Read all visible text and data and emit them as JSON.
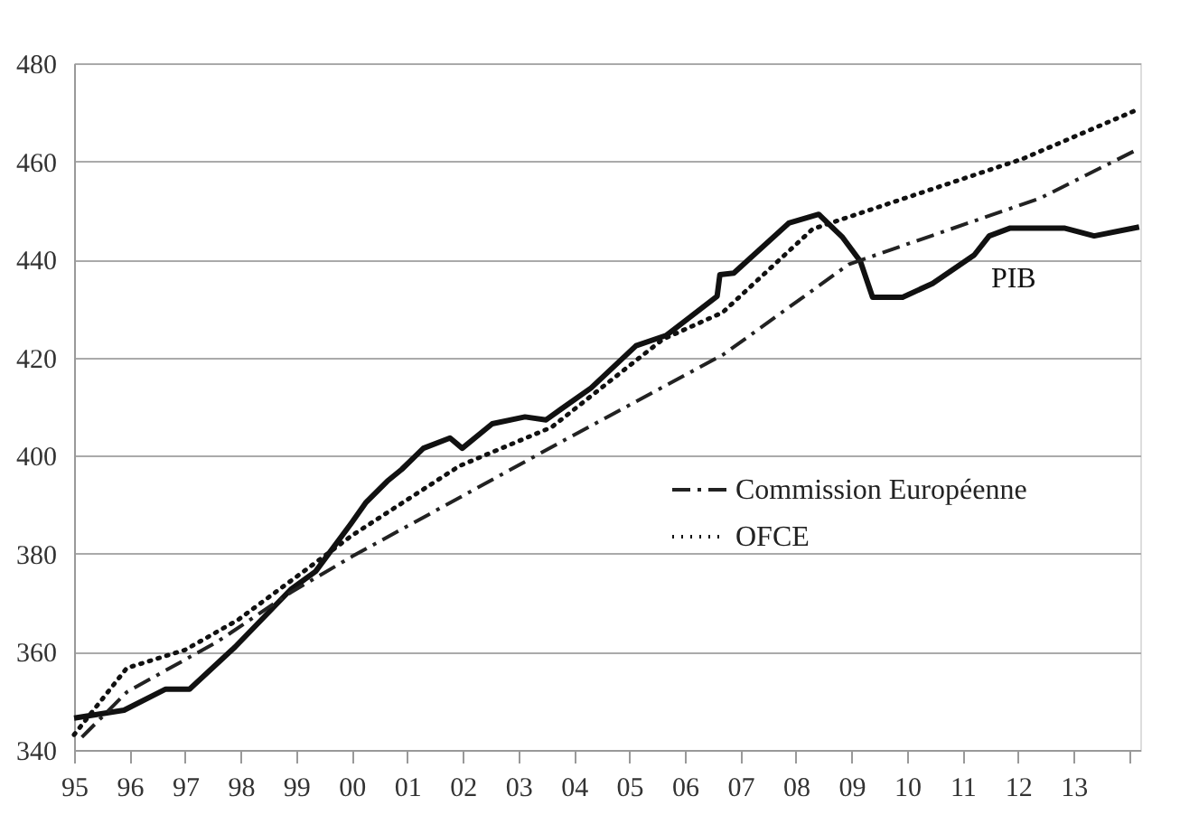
{
  "chart_data": {
    "type": "line",
    "ylim": [
      340,
      480
    ],
    "yticks": [
      340,
      360,
      380,
      400,
      420,
      440,
      460,
      480
    ],
    "xlim": [
      1995,
      2014.2
    ],
    "xticks": [
      {
        "value": 1995,
        "label": "95"
      },
      {
        "value": 1996,
        "label": "96"
      },
      {
        "value": 1997,
        "label": "97"
      },
      {
        "value": 1998,
        "label": "98"
      },
      {
        "value": 1999,
        "label": "99"
      },
      {
        "value": 2000,
        "label": "00"
      },
      {
        "value": 2001,
        "label": "01"
      },
      {
        "value": 2002,
        "label": "02"
      },
      {
        "value": 2003,
        "label": "03"
      },
      {
        "value": 2004,
        "label": "04"
      },
      {
        "value": 2005,
        "label": "05"
      },
      {
        "value": 2006,
        "label": "06"
      },
      {
        "value": 2007,
        "label": "07"
      },
      {
        "value": 2008,
        "label": "08"
      },
      {
        "value": 2009,
        "label": "09"
      },
      {
        "value": 2010,
        "label": "10"
      },
      {
        "value": 2011,
        "label": "11"
      },
      {
        "value": 2012,
        "label": "12"
      },
      {
        "value": 2013,
        "label": "13"
      },
      {
        "value": 2014,
        "label": null
      }
    ],
    "grid": "y",
    "legend": "right",
    "marker": "none",
    "series": [
      {
        "name": "PIB",
        "color": "#111111",
        "line_style": "solid",
        "x": [
          1995.0,
          1995.9,
          1996.65,
          1997.08,
          1997.9,
          1998.9,
          1999.35,
          1999.99,
          2000.26,
          2000.64,
          2000.9,
          2001.29,
          2001.77,
          2001.99,
          2002.53,
          2003.12,
          2003.5,
          2003.77,
          2004.31,
          2005.12,
          2005.66,
          2006.58,
          2006.63,
          2006.88,
          2007.87,
          2008.41,
          2008.84,
          2009.16,
          2009.38,
          2009.92,
          2010.46,
          2011.21,
          2011.48,
          2011.86,
          2012.83,
          2013.37,
          2014.18
        ],
        "values": [
          346.5,
          348.1,
          352.4,
          352.4,
          361.0,
          372.7,
          376.4,
          386.2,
          390.5,
          394.8,
          397.2,
          401.5,
          403.6,
          401.5,
          406.5,
          407.9,
          407.3,
          409.5,
          413.8,
          422.4,
          424.5,
          432.5,
          436.9,
          437.2,
          447.4,
          449.2,
          444.5,
          439.6,
          432.3,
          432.3,
          435.1,
          440.9,
          444.8,
          446.4,
          446.4,
          444.8,
          446.6
        ]
      },
      {
        "name": "Commission Européenne",
        "color": "#222222",
        "line_style": "dashdot",
        "x": [
          1995.14,
          1995.95,
          1997.6,
          1998.9,
          2000.0,
          2003.77,
          2006.69,
          2008.95,
          2012.4,
          2014.18
        ],
        "values": [
          342.6,
          351.8,
          362.2,
          372.1,
          379.4,
          402.8,
          420.6,
          439.0,
          452.5,
          462.6
        ]
      },
      {
        "name": "OFCE",
        "color": "#111111",
        "line_style": "dotted",
        "x": [
          1995.0,
          1995.95,
          1997.0,
          1997.95,
          1999.35,
          2000.0,
          2001.94,
          2003.6,
          2005.6,
          2006.68,
          2008.3,
          2012.08,
          2014.18
        ],
        "values": [
          343.1,
          356.7,
          360.4,
          366.5,
          378.2,
          383.7,
          397.9,
          405.8,
          423.7,
          429.2,
          446.2,
          460.5,
          470.7
        ]
      }
    ]
  }
}
